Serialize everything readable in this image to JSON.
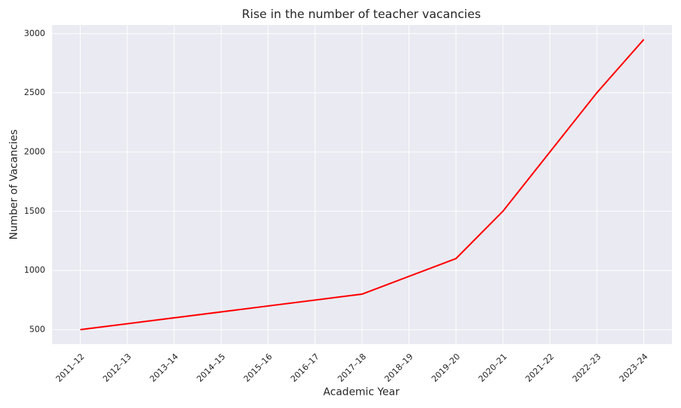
{
  "chart_data": {
    "type": "line",
    "title": "Rise in the number of teacher vacancies",
    "x_label": "Academic Year",
    "y_label": "Number of Vacancies",
    "categories": [
      "2011–12",
      "2012–13",
      "2013–14",
      "2014–15",
      "2015–16",
      "2016–17",
      "2017–18",
      "2018–19",
      "2019–20",
      "2020–21",
      "2021–22",
      "2022–23",
      "2023–24"
    ],
    "series": [
      {
        "color": "#ff0000",
        "values": [
          500,
          550,
          600,
          650,
          700,
          750,
          800,
          950,
          1100,
          1500,
          2000,
          2500,
          2950
        ]
      }
    ],
    "ylim": [
      377.5,
      3072.5
    ],
    "yticks": [
      500,
      1000,
      1500,
      2000,
      2500,
      3000
    ],
    "grid": true
  }
}
